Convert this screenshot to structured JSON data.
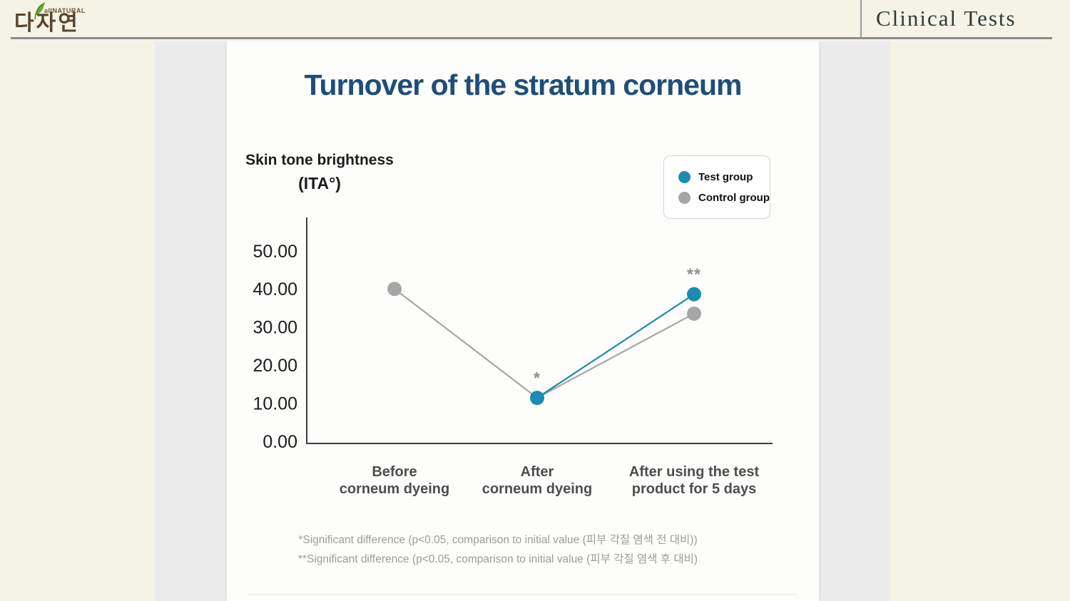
{
  "header": {
    "logo": {
      "korean": "다자연",
      "tagline": "allNATURAL"
    },
    "page_label": "Clinical Tests"
  },
  "colors": {
    "title_navy": "#1e4e79",
    "test_group": "#1a8cb3",
    "control_group": "#a6a6a6",
    "header_bg": "#f5f3e6"
  },
  "legend": {
    "items": [
      {
        "label": "Test group",
        "color": "#1a8cb3"
      },
      {
        "label": "Control group",
        "color": "#a6a6a6"
      }
    ]
  },
  "chart_data": {
    "type": "line",
    "title": "Turnover of the stratum corneum",
    "ylabel": "Skin tone brightness",
    "ylabel_unit": "(ITA°)",
    "categories": [
      [
        "Before",
        "corneum dyeing"
      ],
      [
        "After",
        "corneum dyeing"
      ],
      [
        "After using the test",
        "product for 5 days"
      ]
    ],
    "ylim": [
      0,
      58
    ],
    "grid": false,
    "legend_position": "top-right",
    "yticks": [
      {
        "value": 0,
        "label": "0.00"
      },
      {
        "value": 10,
        "label": "10.00"
      },
      {
        "value": 20,
        "label": "20.00"
      },
      {
        "value": 30,
        "label": "30.00"
      },
      {
        "value": 40,
        "label": "40.00"
      },
      {
        "value": 50,
        "label": "50.00"
      }
    ],
    "series": [
      {
        "name": "Control group",
        "color": "#a6a6a6",
        "values": [
          40.0,
          11.4,
          33.5
        ],
        "visible_from": 0
      },
      {
        "name": "Test group",
        "color": "#1a8cb3",
        "values": [
          40.0,
          11.4,
          38.6
        ],
        "visible_from": 1
      }
    ],
    "annotations": [
      {
        "text": "*",
        "category_index": 1,
        "value": 11.4,
        "dy": -20
      },
      {
        "text": "**",
        "category_index": 2,
        "value": 38.6,
        "dy": -20
      }
    ],
    "footnotes": [
      "*Significant difference (p<0.05, comparison to initial value (피부 각질 염색 전 대비))",
      "**Significant difference (p<0.05, comparison to initial value (피부 각질 염색 후 대비)"
    ]
  }
}
